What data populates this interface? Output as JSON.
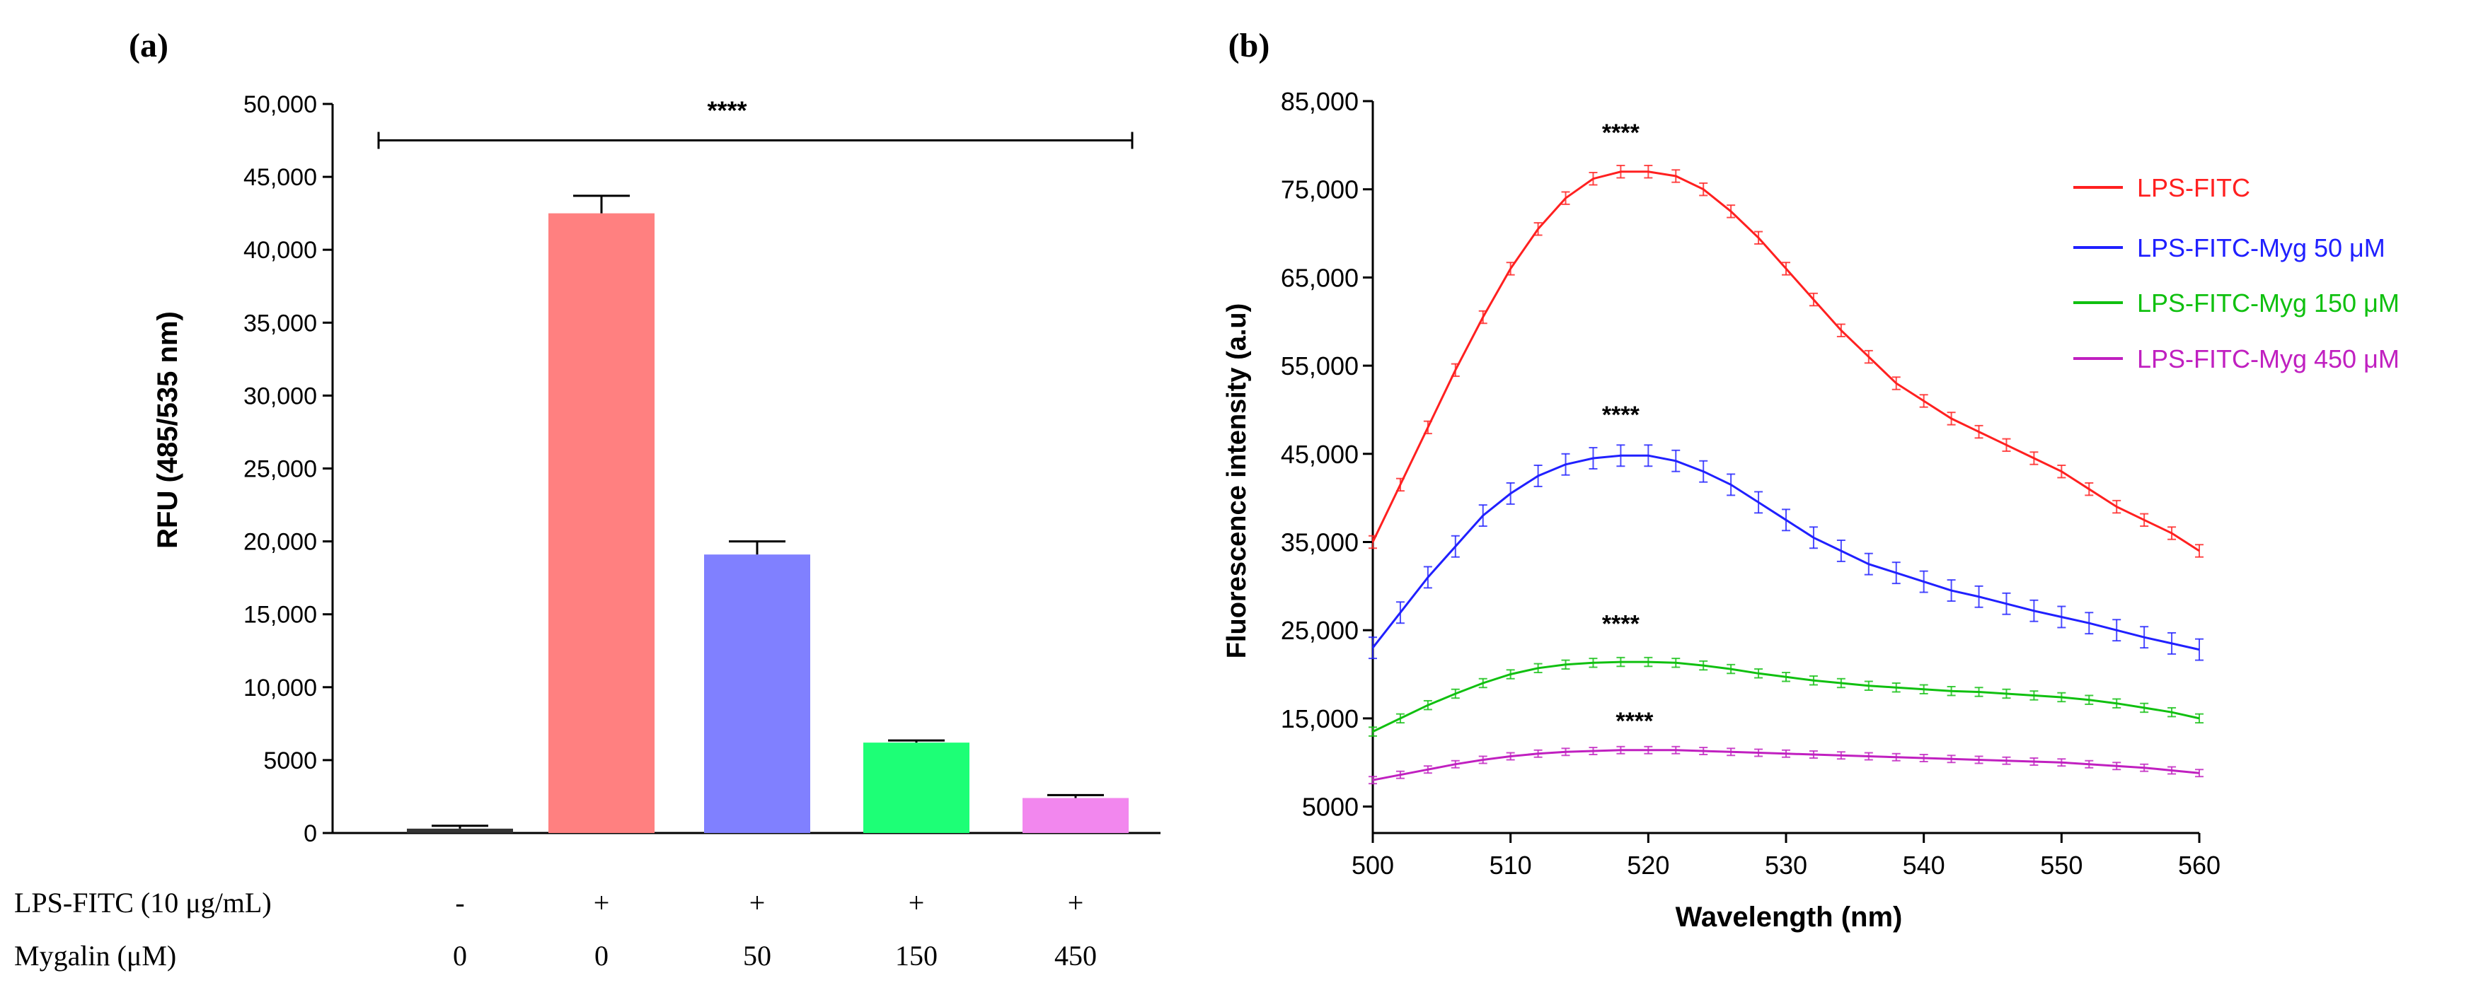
{
  "chart_data": [
    {
      "panel_label": "(a)",
      "type": "bar",
      "ylabel": "RFU (485/535 nm)",
      "ylim": [
        0,
        50000
      ],
      "yticks": [
        0,
        5000,
        10000,
        15000,
        20000,
        25000,
        30000,
        35000,
        40000,
        45000,
        50000
      ],
      "ytick_labels": [
        "0",
        "5000",
        "10,000",
        "15,000",
        "20,000",
        "25,000",
        "30,000",
        "35,000",
        "40,000",
        "45,000",
        "50,000"
      ],
      "values": [
        300,
        42500,
        19100,
        6200,
        2400
      ],
      "errors": [
        200,
        1200,
        900,
        150,
        200
      ],
      "colors": [
        "#333333",
        "#ff8080",
        "#8080ff",
        "#1dff76",
        "#f287ee"
      ],
      "significance": {
        "label": "****",
        "from_index": 0,
        "to_index": 4,
        "y": 47500
      },
      "conditions": [
        {
          "label": "LPS-FITC (10 μg/mL)",
          "values": [
            "-",
            "+",
            "+",
            "+",
            "+"
          ]
        },
        {
          "label": "Mygalin (μM)",
          "values": [
            "0",
            "0",
            "50",
            "150",
            "450"
          ]
        }
      ]
    },
    {
      "panel_label": "(b)",
      "type": "line",
      "xlabel": "Wavelength (nm)",
      "ylabel": "Fluorescence intensity (a.u)",
      "xlim": [
        500,
        560
      ],
      "ylim": [
        2000,
        85000
      ],
      "xticks": [
        500,
        510,
        520,
        530,
        540,
        550,
        560
      ],
      "yticks": [
        5000,
        15000,
        25000,
        35000,
        45000,
        55000,
        65000,
        75000,
        85000
      ],
      "ytick_labels": [
        "5000",
        "15,000",
        "25,000",
        "35,000",
        "45,000",
        "55,000",
        "65,000",
        "75,000",
        "85,000"
      ],
      "x": [
        500,
        502,
        504,
        506,
        508,
        510,
        512,
        514,
        516,
        518,
        520,
        522,
        524,
        526,
        528,
        530,
        532,
        534,
        536,
        538,
        540,
        542,
        544,
        546,
        548,
        550,
        552,
        554,
        556,
        558,
        560
      ],
      "series": [
        {
          "name": "LPS-FITC",
          "color": "#ff2020",
          "error": 700,
          "values": [
            35000,
            41500,
            48000,
            54500,
            60500,
            66000,
            70500,
            74000,
            76200,
            77000,
            77000,
            76500,
            75000,
            72500,
            69500,
            66000,
            62500,
            59000,
            56000,
            53000,
            51000,
            49000,
            47500,
            46000,
            44500,
            43000,
            41000,
            39000,
            37500,
            36000,
            34000
          ]
        },
        {
          "name": "LPS-FITC-Myg 50 μM",
          "color": "#2020ff",
          "error": 1200,
          "values": [
            23000,
            27000,
            31000,
            34500,
            38000,
            40500,
            42500,
            43800,
            44500,
            44800,
            44800,
            44200,
            43000,
            41500,
            39500,
            37500,
            35500,
            34000,
            32500,
            31500,
            30500,
            29500,
            28800,
            28000,
            27200,
            26500,
            25800,
            25000,
            24200,
            23500,
            22800
          ]
        },
        {
          "name": "LPS-FITC-Myg 150 μM",
          "color": "#10c010",
          "error": 500,
          "values": [
            13500,
            15000,
            16500,
            17800,
            19000,
            20000,
            20700,
            21100,
            21300,
            21400,
            21400,
            21300,
            21000,
            20600,
            20100,
            19700,
            19300,
            19000,
            18700,
            18500,
            18300,
            18100,
            18000,
            17800,
            17600,
            17400,
            17100,
            16700,
            16200,
            15700,
            15000
          ]
        },
        {
          "name": "LPS-FITC-Myg 450 μM",
          "color": "#c020c0",
          "error": 400,
          "values": [
            8000,
            8600,
            9200,
            9800,
            10300,
            10700,
            11000,
            11200,
            11300,
            11400,
            11400,
            11400,
            11300,
            11200,
            11100,
            11000,
            10900,
            10800,
            10700,
            10600,
            10500,
            10400,
            10300,
            10200,
            10100,
            10000,
            9800,
            9600,
            9400,
            9100,
            8800
          ]
        }
      ],
      "annotations": [
        {
          "text": "****",
          "x": 518,
          "y": 80500
        },
        {
          "text": "****",
          "x": 518,
          "y": 48500
        },
        {
          "text": "****",
          "x": 518,
          "y": 24800
        },
        {
          "text": "****",
          "x": 519,
          "y": 13800
        }
      ]
    }
  ]
}
